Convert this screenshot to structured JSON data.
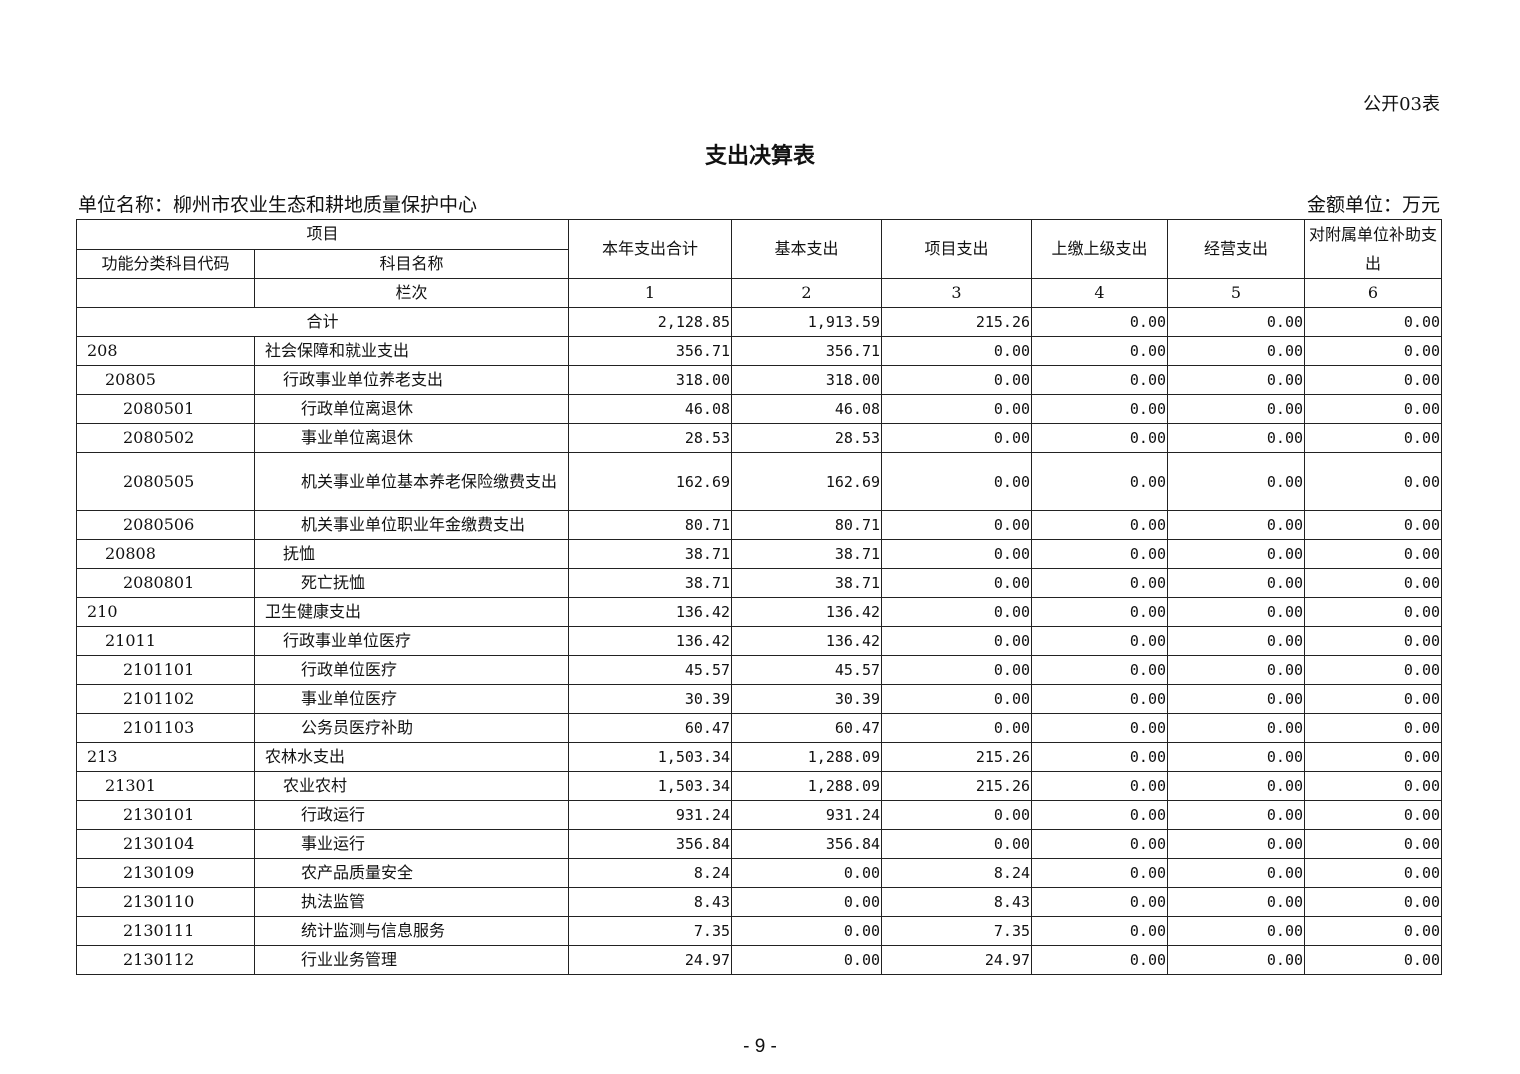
{
  "form_no": "公开03表",
  "title": "支出决算表",
  "unit_name": "单位名称：柳州市农业生态和耕地质量保护中心",
  "unit_money": "金额单位：万元",
  "header": {
    "item": "项目",
    "code": "功能分类科目代码",
    "name": "科目名称",
    "col_no": "栏次",
    "columns": [
      "本年支出合计",
      "基本支出",
      "项目支出",
      "上缴上级支出",
      "经营支出",
      "对附属单位补助支出"
    ],
    "column_numbers": [
      "1",
      "2",
      "3",
      "4",
      "5",
      "6"
    ]
  },
  "total": {
    "label": "合计",
    "values": [
      "2,128.85",
      "1,913.59",
      "215.26",
      "0.00",
      "0.00",
      "0.00"
    ]
  },
  "rows": [
    {
      "code": "208",
      "name": "社会保障和就业支出",
      "level": 1,
      "values": [
        "356.71",
        "356.71",
        "0.00",
        "0.00",
        "0.00",
        "0.00"
      ]
    },
    {
      "code": "20805",
      "name": "行政事业单位养老支出",
      "level": 2,
      "values": [
        "318.00",
        "318.00",
        "0.00",
        "0.00",
        "0.00",
        "0.00"
      ]
    },
    {
      "code": "2080501",
      "name": "行政单位离退休",
      "level": 3,
      "values": [
        "46.08",
        "46.08",
        "0.00",
        "0.00",
        "0.00",
        "0.00"
      ]
    },
    {
      "code": "2080502",
      "name": "事业单位离退休",
      "level": 3,
      "values": [
        "28.53",
        "28.53",
        "0.00",
        "0.00",
        "0.00",
        "0.00"
      ]
    },
    {
      "code": "2080505",
      "name": "机关事业单位基本养老保险缴费支出",
      "level": 3,
      "tall": true,
      "values": [
        "162.69",
        "162.69",
        "0.00",
        "0.00",
        "0.00",
        "0.00"
      ]
    },
    {
      "code": "2080506",
      "name": "机关事业单位职业年金缴费支出",
      "level": 3,
      "values": [
        "80.71",
        "80.71",
        "0.00",
        "0.00",
        "0.00",
        "0.00"
      ]
    },
    {
      "code": "20808",
      "name": "抚恤",
      "level": 2,
      "values": [
        "38.71",
        "38.71",
        "0.00",
        "0.00",
        "0.00",
        "0.00"
      ]
    },
    {
      "code": "2080801",
      "name": "死亡抚恤",
      "level": 3,
      "values": [
        "38.71",
        "38.71",
        "0.00",
        "0.00",
        "0.00",
        "0.00"
      ]
    },
    {
      "code": "210",
      "name": "卫生健康支出",
      "level": 1,
      "values": [
        "136.42",
        "136.42",
        "0.00",
        "0.00",
        "0.00",
        "0.00"
      ]
    },
    {
      "code": "21011",
      "name": "行政事业单位医疗",
      "level": 2,
      "values": [
        "136.42",
        "136.42",
        "0.00",
        "0.00",
        "0.00",
        "0.00"
      ]
    },
    {
      "code": "2101101",
      "name": "行政单位医疗",
      "level": 3,
      "values": [
        "45.57",
        "45.57",
        "0.00",
        "0.00",
        "0.00",
        "0.00"
      ]
    },
    {
      "code": "2101102",
      "name": "事业单位医疗",
      "level": 3,
      "values": [
        "30.39",
        "30.39",
        "0.00",
        "0.00",
        "0.00",
        "0.00"
      ]
    },
    {
      "code": "2101103",
      "name": "公务员医疗补助",
      "level": 3,
      "values": [
        "60.47",
        "60.47",
        "0.00",
        "0.00",
        "0.00",
        "0.00"
      ]
    },
    {
      "code": "213",
      "name": "农林水支出",
      "level": 1,
      "values": [
        "1,503.34",
        "1,288.09",
        "215.26",
        "0.00",
        "0.00",
        "0.00"
      ]
    },
    {
      "code": "21301",
      "name": "农业农村",
      "level": 2,
      "values": [
        "1,503.34",
        "1,288.09",
        "215.26",
        "0.00",
        "0.00",
        "0.00"
      ]
    },
    {
      "code": "2130101",
      "name": "行政运行",
      "level": 3,
      "values": [
        "931.24",
        "931.24",
        "0.00",
        "0.00",
        "0.00",
        "0.00"
      ]
    },
    {
      "code": "2130104",
      "name": "事业运行",
      "level": 3,
      "values": [
        "356.84",
        "356.84",
        "0.00",
        "0.00",
        "0.00",
        "0.00"
      ]
    },
    {
      "code": "2130109",
      "name": "农产品质量安全",
      "level": 3,
      "values": [
        "8.24",
        "0.00",
        "8.24",
        "0.00",
        "0.00",
        "0.00"
      ]
    },
    {
      "code": "2130110",
      "name": "执法监管",
      "level": 3,
      "values": [
        "8.43",
        "0.00",
        "8.43",
        "0.00",
        "0.00",
        "0.00"
      ]
    },
    {
      "code": "2130111",
      "name": "统计监测与信息服务",
      "level": 3,
      "values": [
        "7.35",
        "0.00",
        "7.35",
        "0.00",
        "0.00",
        "0.00"
      ]
    },
    {
      "code": "2130112",
      "name": "行业业务管理",
      "level": 3,
      "values": [
        "24.97",
        "0.00",
        "24.97",
        "0.00",
        "0.00",
        "0.00"
      ]
    }
  ],
  "page_number": "- 9 -"
}
